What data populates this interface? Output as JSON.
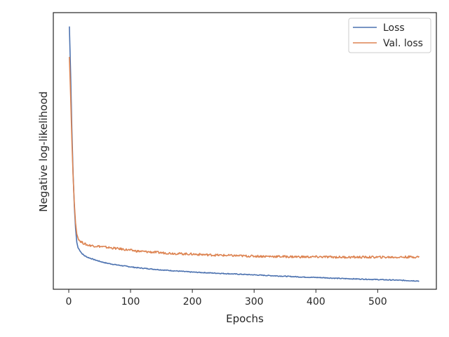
{
  "chart_data": {
    "type": "line",
    "title": "",
    "xlabel": "Epochs",
    "ylabel": "Negative log-likelihood",
    "xlim": [
      -25,
      595
    ],
    "ylim": [
      0.0,
      1.0
    ],
    "xticks": [
      0,
      100,
      200,
      300,
      400,
      500
    ],
    "xtick_labels": [
      "0",
      "100",
      "200",
      "300",
      "400",
      "500"
    ],
    "yticks_shown": false,
    "grid": false,
    "legend_position": "top-right",
    "series": [
      {
        "name": "Loss",
        "color": "#4c72b0",
        "x": [
          1,
          3,
          5,
          7,
          9,
          11,
          13,
          15,
          18,
          21,
          25,
          30,
          40,
          50,
          60,
          75,
          90,
          110,
          130,
          150,
          175,
          200,
          230,
          260,
          290,
          320,
          350,
          380,
          410,
          440,
          470,
          500,
          530,
          567
        ],
        "y": [
          0.95,
          0.78,
          0.58,
          0.42,
          0.3,
          0.22,
          0.17,
          0.15,
          0.14,
          0.13,
          0.122,
          0.116,
          0.108,
          0.101,
          0.095,
          0.089,
          0.084,
          0.078,
          0.074,
          0.07,
          0.066,
          0.062,
          0.059,
          0.056,
          0.053,
          0.05,
          0.047,
          0.044,
          0.042,
          0.039,
          0.037,
          0.035,
          0.033,
          0.03
        ]
      },
      {
        "name": "Val. loss",
        "color": "#dd8452",
        "x": [
          1,
          3,
          5,
          7,
          9,
          11,
          13,
          15,
          18,
          21,
          25,
          30,
          40,
          50,
          60,
          75,
          90,
          110,
          130,
          150,
          175,
          200,
          230,
          260,
          290,
          320,
          350,
          380,
          410,
          440,
          470,
          500,
          530,
          567
        ],
        "y": [
          0.84,
          0.7,
          0.54,
          0.41,
          0.31,
          0.24,
          0.2,
          0.185,
          0.175,
          0.17,
          0.165,
          0.16,
          0.157,
          0.155,
          0.152,
          0.148,
          0.144,
          0.138,
          0.135,
          0.132,
          0.129,
          0.127,
          0.124,
          0.122,
          0.12,
          0.119,
          0.118,
          0.117,
          0.117,
          0.116,
          0.116,
          0.116,
          0.116,
          0.117
        ]
      }
    ]
  }
}
